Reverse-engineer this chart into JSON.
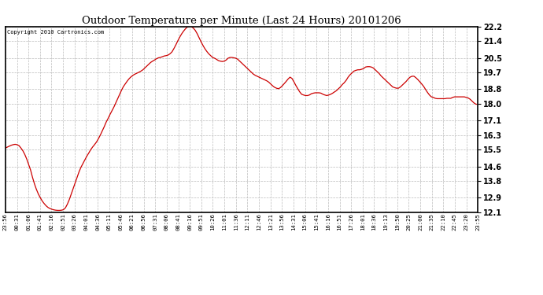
{
  "title": "Outdoor Temperature per Minute (Last 24 Hours) 20101206",
  "copyright": "Copyright 2010 Cartronics.com",
  "line_color": "#cc0000",
  "background_color": "#ffffff",
  "grid_color": "#bbbbbb",
  "yticks": [
    12.1,
    12.9,
    13.8,
    14.6,
    15.5,
    16.3,
    17.1,
    18.0,
    18.8,
    19.7,
    20.5,
    21.4,
    22.2
  ],
  "xtick_labels": [
    "23:56",
    "00:31",
    "01:06",
    "01:41",
    "02:16",
    "02:51",
    "03:26",
    "04:01",
    "04:36",
    "05:11",
    "05:46",
    "06:21",
    "06:56",
    "07:31",
    "08:06",
    "08:41",
    "09:16",
    "09:51",
    "10:26",
    "11:01",
    "11:36",
    "12:11",
    "12:46",
    "13:21",
    "13:56",
    "14:31",
    "15:06",
    "15:41",
    "16:16",
    "16:51",
    "17:26",
    "18:01",
    "18:36",
    "19:13",
    "19:50",
    "20:25",
    "21:00",
    "21:35",
    "22:10",
    "22:45",
    "23:20",
    "23:55"
  ],
  "ymin": 12.1,
  "ymax": 22.2,
  "data_points": [
    15.6,
    15.65,
    15.7,
    15.75,
    15.78,
    15.8,
    15.78,
    15.73,
    15.6,
    15.45,
    15.25,
    15.0,
    14.7,
    14.4,
    14.0,
    13.65,
    13.35,
    13.1,
    12.9,
    12.72,
    12.58,
    12.46,
    12.37,
    12.31,
    12.27,
    12.24,
    12.22,
    12.21,
    12.21,
    12.22,
    12.25,
    12.35,
    12.55,
    12.8,
    13.1,
    13.4,
    13.7,
    14.0,
    14.3,
    14.55,
    14.75,
    14.95,
    15.15,
    15.32,
    15.5,
    15.65,
    15.78,
    15.92,
    16.1,
    16.3,
    16.52,
    16.75,
    17.0,
    17.2,
    17.42,
    17.62,
    17.82,
    18.05,
    18.28,
    18.52,
    18.75,
    18.95,
    19.1,
    19.25,
    19.38,
    19.48,
    19.56,
    19.62,
    19.67,
    19.72,
    19.78,
    19.85,
    19.95,
    20.05,
    20.15,
    20.25,
    20.32,
    20.38,
    20.45,
    20.5,
    20.52,
    20.56,
    20.6,
    20.62,
    20.65,
    20.72,
    20.82,
    21.0,
    21.2,
    21.42,
    21.62,
    21.8,
    21.95,
    22.08,
    22.18,
    22.22,
    22.2,
    22.12,
    22.0,
    21.82,
    21.6,
    21.38,
    21.18,
    21.0,
    20.85,
    20.72,
    20.62,
    20.52,
    20.48,
    20.42,
    20.35,
    20.32,
    20.3,
    20.32,
    20.38,
    20.48,
    20.52,
    20.52,
    20.5,
    20.48,
    20.42,
    20.32,
    20.22,
    20.12,
    20.02,
    19.92,
    19.82,
    19.72,
    19.62,
    19.55,
    19.5,
    19.45,
    19.4,
    19.35,
    19.3,
    19.25,
    19.18,
    19.08,
    18.98,
    18.9,
    18.85,
    18.82,
    18.88,
    18.98,
    19.1,
    19.22,
    19.35,
    19.45,
    19.38,
    19.2,
    19.0,
    18.82,
    18.65,
    18.52,
    18.48,
    18.45,
    18.45,
    18.48,
    18.55,
    18.58,
    18.6,
    18.6,
    18.6,
    18.58,
    18.52,
    18.48,
    18.45,
    18.48,
    18.52,
    18.58,
    18.65,
    18.72,
    18.82,
    18.92,
    19.05,
    19.15,
    19.28,
    19.45,
    19.58,
    19.68,
    19.78,
    19.82,
    19.85,
    19.85,
    19.88,
    19.92,
    20.0,
    20.02,
    20.02,
    20.0,
    19.95,
    19.85,
    19.75,
    19.65,
    19.52,
    19.42,
    19.32,
    19.22,
    19.12,
    19.02,
    18.92,
    18.88,
    18.85,
    18.85,
    18.92,
    19.02,
    19.12,
    19.22,
    19.35,
    19.45,
    19.5,
    19.5,
    19.42,
    19.32,
    19.2,
    19.08,
    18.95,
    18.78,
    18.62,
    18.48,
    18.38,
    18.35,
    18.3,
    18.28,
    18.28,
    18.28,
    18.28,
    18.28,
    18.3,
    18.3,
    18.3,
    18.35,
    18.38,
    18.38,
    18.38,
    18.38,
    18.38,
    18.38,
    18.35,
    18.32,
    18.25,
    18.15,
    18.05,
    17.98,
    17.98
  ]
}
